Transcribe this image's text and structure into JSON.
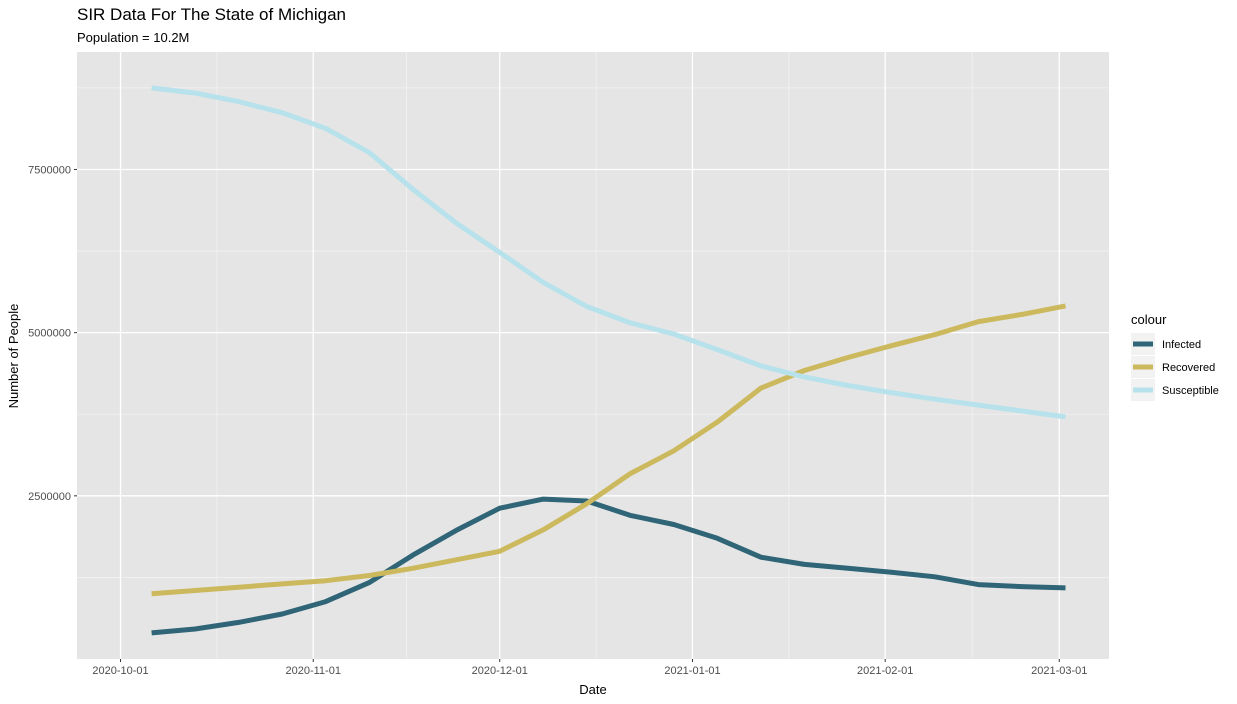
{
  "chart_data": {
    "type": "line",
    "title": "SIR Data For The State of Michigan",
    "subtitle": "Population = 10.2M",
    "xlabel": "Date",
    "ylabel": "Number of People",
    "legend_title": "colour",
    "legend_position": "right",
    "grid": true,
    "x_ticks": [
      "2020-10-01",
      "2020-11-01",
      "2020-12-01",
      "2021-01-01",
      "2021-02-01",
      "2021-03-01"
    ],
    "y_ticks": [
      2500000,
      5000000,
      7500000
    ],
    "y_tick_labels": [
      "2500000",
      "5000000",
      "7500000"
    ],
    "ylim": [
      0,
      9300000
    ],
    "x": [
      "2020-10-06",
      "2020-10-13",
      "2020-10-20",
      "2020-10-27",
      "2020-11-03",
      "2020-11-10",
      "2020-11-17",
      "2020-11-24",
      "2020-12-01",
      "2020-12-08",
      "2020-12-15",
      "2020-12-22",
      "2020-12-29",
      "2021-01-05",
      "2021-01-12",
      "2021-01-19",
      "2021-01-26",
      "2021-02-02",
      "2021-02-09",
      "2021-02-16",
      "2021-02-23",
      "2021-03-02"
    ],
    "series": [
      {
        "name": "Infected",
        "color": "#2f6577",
        "values": [
          400000,
          460000,
          560000,
          690000,
          880000,
          1170000,
          1590000,
          1970000,
          2310000,
          2450000,
          2420000,
          2200000,
          2060000,
          1850000,
          1560000,
          1450000,
          1390000,
          1330000,
          1260000,
          1140000,
          1110000,
          1090000
        ]
      },
      {
        "name": "Recovered",
        "color": "#ccb95e",
        "values": [
          1000000,
          1050000,
          1100000,
          1150000,
          1200000,
          1280000,
          1390000,
          1520000,
          1650000,
          1980000,
          2380000,
          2840000,
          3190000,
          3630000,
          4150000,
          4420000,
          4620000,
          4800000,
          4970000,
          5170000,
          5280000,
          5410000
        ]
      },
      {
        "name": "Susceptible",
        "color": "#b7e2ec",
        "values": [
          8750000,
          8670000,
          8540000,
          8370000,
          8130000,
          7760000,
          7200000,
          6680000,
          6230000,
          5770000,
          5400000,
          5150000,
          4980000,
          4740000,
          4490000,
          4320000,
          4190000,
          4080000,
          3980000,
          3890000,
          3800000,
          3710000
        ]
      }
    ]
  }
}
